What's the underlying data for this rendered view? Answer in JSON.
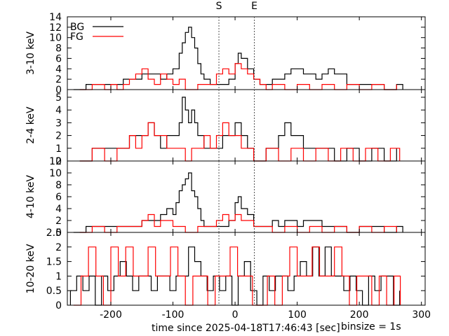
{
  "chart_data": {
    "type": "line",
    "xlabel": "time since 2025-04-18T17:46:43 [sec]",
    "binsize_label": "binsize = 1s",
    "xlim": [
      -270,
      306
    ],
    "xticks": [
      -200,
      -100,
      0,
      100,
      200,
      300
    ],
    "markers": [
      {
        "label": "S",
        "x": -26
      },
      {
        "label": "E",
        "x": 31
      }
    ],
    "legend": {
      "position": "top-left",
      "entries": [
        {
          "label": "BG",
          "color": "#000000"
        },
        {
          "label": "FG",
          "color": "#ff0000"
        }
      ]
    },
    "panels": [
      {
        "ylabel": "3-10 keV",
        "ylim": [
          0,
          14
        ],
        "yticks": [
          0,
          2,
          4,
          6,
          8,
          10,
          12,
          14
        ],
        "series": [
          {
            "name": "BG",
            "color": "#000000",
            "x": [
              -260,
              -240,
              -220,
              -200,
              -180,
              -160,
              -150,
              -140,
              -130,
              -120,
              -110,
              -100,
              -95,
              -90,
              -85,
              -80,
              -75,
              -70,
              -65,
              -60,
              -55,
              -50,
              -40,
              -30,
              -20,
              -10,
              0,
              5,
              10,
              20,
              30,
              40,
              50,
              60,
              70,
              80,
              90,
              100,
              110,
              120,
              130,
              140,
              150,
              160,
              180,
              200,
              220,
              240,
              260,
              270
            ],
            "y": [
              0,
              1,
              1,
              1,
              2,
              2,
              3,
              3,
              3,
              2,
              3,
              4,
              4,
              7,
              9,
              11,
              12,
              10,
              8,
              5,
              3,
              2,
              1,
              1,
              1,
              2,
              5,
              7,
              6,
              4,
              2,
              1,
              1,
              2,
              2,
              3,
              4,
              4,
              3,
              3,
              2,
              3,
              4,
              3,
              1,
              1,
              1,
              0,
              1,
              0
            ]
          },
          {
            "name": "FG",
            "color": "#ff0000",
            "x": [
              -250,
              -230,
              -210,
              -200,
              -190,
              -180,
              -170,
              -160,
              -150,
              -140,
              -130,
              -120,
              -110,
              -100,
              -90,
              -80,
              -60,
              -40,
              -30,
              -20,
              -10,
              0,
              10,
              20,
              30,
              40,
              50,
              60,
              80,
              100,
              120,
              140,
              160,
              180,
              200,
              220,
              240,
              260
            ],
            "y": [
              0,
              1,
              0,
              1,
              0,
              1,
              2,
              3,
              4,
              2,
              1,
              3,
              2,
              1,
              2,
              0,
              1,
              1,
              3,
              4,
              3,
              5,
              4,
              3,
              2,
              1,
              0,
              1,
              0,
              1,
              0,
              1,
              0,
              1,
              0,
              1,
              0,
              1
            ]
          }
        ]
      },
      {
        "ylabel": "2-4 keV",
        "ylim": [
          0,
          5.6
        ],
        "yticks": [
          0,
          1,
          2,
          3,
          4,
          5
        ],
        "series": [
          {
            "name": "BG",
            "color": "#000000",
            "x": [
              -250,
              -230,
              -210,
              -190,
              -170,
              -150,
              -140,
              -130,
              -120,
              -110,
              -100,
              -90,
              -85,
              -80,
              -75,
              -70,
              -65,
              -60,
              -50,
              -40,
              -30,
              -20,
              -10,
              0,
              10,
              20,
              30,
              50,
              70,
              80,
              90,
              100,
              110,
              120,
              140,
              160,
              180,
              200,
              220,
              240,
              260
            ],
            "y": [
              0,
              1,
              1,
              1,
              2,
              2,
              3,
              2,
              1,
              2,
              2,
              3,
              5,
              4,
              3,
              4,
              3,
              2,
              1,
              1,
              1,
              2,
              2,
              3,
              2,
              1,
              0,
              1,
              2,
              3,
              2,
              2,
              1,
              1,
              1,
              0,
              1,
              0,
              1,
              0,
              1
            ]
          },
          {
            "name": "FG",
            "color": "#ff0000",
            "x": [
              -250,
              -230,
              -210,
              -190,
              -170,
              -160,
              -150,
              -140,
              -130,
              -120,
              -110,
              -100,
              -90,
              -80,
              -70,
              -60,
              -50,
              -40,
              -30,
              -20,
              -10,
              0,
              10,
              20,
              30,
              50,
              70,
              90,
              110,
              130,
              150,
              170,
              190,
              210,
              230,
              250,
              265
            ],
            "y": [
              0,
              1,
              0,
              1,
              2,
              1,
              2,
              3,
              2,
              2,
              1,
              1,
              1,
              0,
              1,
              1,
              2,
              1,
              2,
              3,
              2,
              2,
              1,
              1,
              0,
              1,
              0,
              1,
              0,
              1,
              0,
              1,
              0,
              1,
              0,
              1,
              0
            ]
          }
        ]
      },
      {
        "ylabel": "4-10 keV",
        "ylim": [
          0,
          12
        ],
        "yticks": [
          0,
          2,
          4,
          6,
          8,
          10,
          12
        ],
        "series": [
          {
            "name": "BG",
            "color": "#000000",
            "x": [
              -260,
              -240,
              -220,
              -200,
              -180,
              -160,
              -150,
              -140,
              -130,
              -120,
              -110,
              -100,
              -95,
              -90,
              -85,
              -80,
              -75,
              -70,
              -65,
              -60,
              -55,
              -50,
              -40,
              -30,
              -20,
              -10,
              0,
              5,
              10,
              20,
              30,
              40,
              50,
              60,
              70,
              80,
              90,
              100,
              110,
              120,
              140,
              160,
              180,
              200,
              220,
              240,
              260,
              270
            ],
            "y": [
              0,
              1,
              1,
              1,
              1,
              1,
              2,
              2,
              2,
              3,
              4,
              3,
              5,
              7,
              8,
              9,
              10,
              7,
              6,
              4,
              2,
              1,
              1,
              1,
              1,
              2,
              5,
              6,
              4,
              3,
              1,
              1,
              1,
              2,
              1,
              2,
              2,
              1,
              2,
              2,
              1,
              1,
              0,
              1,
              1,
              0,
              1,
              0
            ]
          },
          {
            "name": "FG",
            "color": "#ff0000",
            "x": [
              -250,
              -230,
              -210,
              -190,
              -170,
              -150,
              -140,
              -130,
              -120,
              -110,
              -100,
              -90,
              -80,
              -60,
              -40,
              -30,
              -20,
              -10,
              0,
              10,
              20,
              30,
              40,
              60,
              80,
              100,
              120,
              140,
              160,
              180,
              200,
              220,
              240,
              260
            ],
            "y": [
              0,
              1,
              0,
              1,
              1,
              2,
              3,
              1,
              2,
              2,
              1,
              1,
              0,
              1,
              1,
              2,
              3,
              2,
              3,
              2,
              2,
              1,
              1,
              0,
              1,
              0,
              1,
              0,
              1,
              0,
              1,
              0,
              1,
              0
            ]
          }
        ]
      },
      {
        "ylabel": "10-20 keV",
        "ylim": [
          0,
          2.5
        ],
        "yticks": [
          0,
          0.5,
          1,
          1.5,
          2,
          2.5
        ],
        "yticklabels": [
          "0",
          "0.5",
          "1",
          "1.5",
          "2",
          "2.5"
        ],
        "series": [
          {
            "name": "BG",
            "color": "#000000",
            "x": [
              -265,
              -255,
              -245,
              -235,
              -225,
              -215,
              -205,
              -195,
              -185,
              -175,
              -165,
              -155,
              -145,
              -135,
              -125,
              -115,
              -105,
              -95,
              -85,
              -75,
              -65,
              -55,
              -45,
              -35,
              -25,
              -15,
              -5,
              5,
              15,
              25,
              35,
              45,
              55,
              65,
              75,
              85,
              95,
              105,
              115,
              125,
              135,
              145,
              155,
              165,
              175,
              185,
              195,
              205,
              215,
              225,
              235,
              245,
              255,
              265
            ],
            "y": [
              0.5,
              1,
              0.5,
              1,
              0,
              1,
              0.5,
              1,
              1.5,
              1,
              0.5,
              1,
              1,
              0.5,
              1,
              1,
              0.5,
              1,
              1,
              2,
              1.5,
              1,
              0.5,
              1,
              0.5,
              1,
              0,
              1,
              1.5,
              0.5,
              0,
              1,
              0.5,
              1,
              1,
              0.5,
              1,
              1.5,
              1,
              2,
              1,
              2,
              1,
              1,
              0.5,
              1,
              0.5,
              0,
              1,
              0.5,
              1,
              1,
              0,
              0.5
            ]
          },
          {
            "name": "FG",
            "color": "#ff0000",
            "x": [
              -260,
              -248,
              -236,
              -224,
              -212,
              -200,
              -188,
              -176,
              -164,
              -152,
              -140,
              -128,
              -116,
              -104,
              -92,
              -80,
              -68,
              -56,
              -44,
              -32,
              -20,
              -8,
              4,
              16,
              28,
              40,
              52,
              64,
              76,
              88,
              100,
              112,
              124,
              136,
              148,
              160,
              172,
              184,
              196,
              208,
              220,
              232,
              244,
              256,
              266
            ],
            "y": [
              0,
              1,
              2,
              1,
              0,
              2,
              1,
              2,
              1,
              1,
              2,
              1,
              1,
              2,
              1,
              0,
              1,
              1,
              0,
              1,
              1,
              2,
              1,
              1,
              0,
              0,
              1,
              0,
              1,
              2,
              1,
              1,
              2,
              1,
              1,
              2,
              1,
              0,
              1,
              1,
              0,
              1,
              0,
              1,
              0
            ]
          }
        ]
      }
    ]
  }
}
